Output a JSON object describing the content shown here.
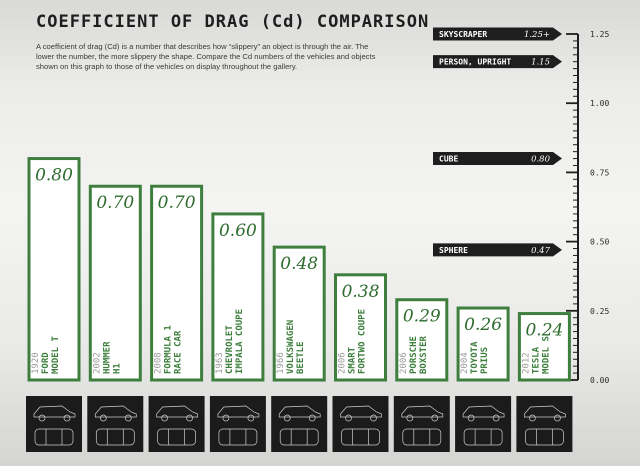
{
  "header": {
    "title": "COEFFICIENT OF DRAG (Cd) COMPARISON",
    "description": "A coefficient of drag (Cd) is a number that describes how “slippery” an object is through the air. The lower the number, the more slippery the shape. Compare the Cd numbers of the vehicles and objects shown on this graph to those of the vehicles on display throughout the gallery."
  },
  "colors": {
    "bar_outline": "#3e7f3e",
    "value_text": "#2e6b2e",
    "reference_marker": "#1e1e1e",
    "icon_tile": "#1b1b1b"
  },
  "chart_data": {
    "type": "bar",
    "title": "COEFFICIENT OF DRAG (Cd) COMPARISON",
    "ylim": [
      0,
      1.25
    ],
    "yticks": [
      "0.00",
      "0.25",
      "0.50",
      "0.75",
      "1.00",
      "1.25"
    ],
    "grid": false,
    "bars": [
      {
        "year": "1920",
        "name": [
          "FORD",
          "MODEL T"
        ],
        "value": 0.8,
        "label": "0.80",
        "icon": "model-t-icon"
      },
      {
        "year": "2002",
        "name": [
          "HUMMER",
          "H1"
        ],
        "value": 0.7,
        "label": "0.70",
        "icon": "hummer-icon"
      },
      {
        "year": "2008",
        "name": [
          "FORMULA 1",
          "RACE CAR"
        ],
        "value": 0.7,
        "label": "0.70",
        "icon": "race-car-icon"
      },
      {
        "year": "1963",
        "name": [
          "CHEVROLET",
          "IMPALA COUPE"
        ],
        "value": 0.6,
        "label": "0.60",
        "icon": "impala-icon"
      },
      {
        "year": "1966",
        "name": [
          "VOLKSWAGEN",
          "BEETLE"
        ],
        "value": 0.48,
        "label": "0.48",
        "icon": "beetle-icon"
      },
      {
        "year": "2006",
        "name": [
          "SMART",
          "FORTWO COUPE"
        ],
        "value": 0.38,
        "label": "0.38",
        "icon": "smart-car-icon"
      },
      {
        "year": "2006",
        "name": [
          "PORSCHE",
          "BOXSTER"
        ],
        "value": 0.29,
        "label": "0.29",
        "icon": "porsche-icon"
      },
      {
        "year": "2004",
        "name": [
          "TOYOTA",
          "PRIUS"
        ],
        "value": 0.26,
        "label": "0.26",
        "icon": "prius-icon"
      },
      {
        "year": "2012",
        "name": [
          "TESLA",
          "MODEL S"
        ],
        "value": 0.24,
        "label": "0.24",
        "icon": "tesla-icon"
      }
    ],
    "references": [
      {
        "label": "SKYSCRAPER",
        "value": 1.25,
        "value_label": "1.25+"
      },
      {
        "label": "PERSON, UPRIGHT",
        "value": 1.15,
        "value_label": "1.15"
      },
      {
        "label": "CUBE",
        "value": 0.8,
        "value_label": "0.80"
      },
      {
        "label": "SPHERE",
        "value": 0.47,
        "value_label": "0.47"
      }
    ]
  }
}
